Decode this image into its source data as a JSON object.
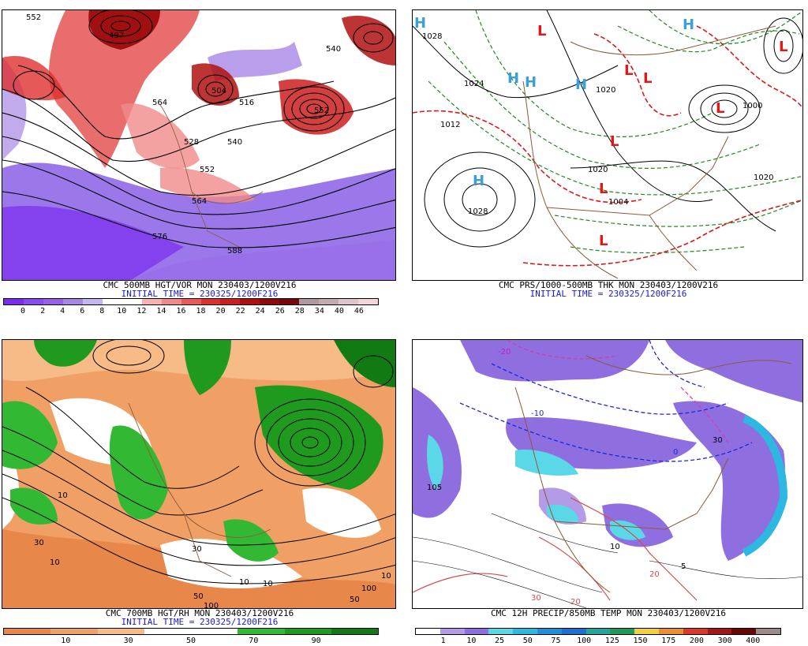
{
  "panels": [
    {
      "caption1": "CMC 500MB HGT/VOR MON 230403/1200V216",
      "caption2": "INITIAL TIME = 230325/1200F216",
      "colorbar": {
        "colors": [
          "#7b2cf0",
          "#8a4bf0",
          "#9a5fe8",
          "#a887e6",
          "#c5b5f2",
          "#ffffff",
          "#ffffff",
          "#f7b2b2",
          "#f08a8a",
          "#e85a5a",
          "#df3030",
          "#cc1f1f",
          "#b01010",
          "#8f0a0a",
          "#780606",
          "#b09aa0",
          "#c6aab0",
          "#e0c4cc",
          "#f6d4dc"
        ],
        "ticks": [
          "0",
          "2",
          "4",
          "6",
          "8",
          "10",
          "12",
          "14",
          "16",
          "18",
          "20",
          "22",
          "24",
          "26",
          "28",
          "34",
          "40",
          "46"
        ]
      },
      "contour_labels": [
        "552",
        "564",
        "497",
        "540",
        "516",
        "528",
        "540",
        "552",
        "564",
        "576",
        "588",
        "552",
        "504"
      ]
    },
    {
      "caption1": "CMC PRS/1000-500MB THK MON 230403/1200V216",
      "caption2": "INITIAL TIME = 230325/1200F216",
      "contour_labels": [
        "1028",
        "1012",
        "1024",
        "1020",
        "1028",
        "1020",
        "1004",
        "1000",
        "1020"
      ],
      "highs": [
        "H",
        "H",
        "H",
        "H",
        "H",
        "H"
      ],
      "lows": [
        "L",
        "L",
        "L",
        "L",
        "L",
        "L",
        "L",
        "L"
      ]
    },
    {
      "caption1": "CMC 700MB HGT/RH MON 230403/1200V216",
      "caption2": "INITIAL TIME = 230325/1200F216",
      "colorbar": {
        "colors": [
          "#e8874a",
          "#f0a064",
          "#f6bb86",
          "#ffffff",
          "#ffffff",
          "#33b833",
          "#1f9a1f",
          "#127a12"
        ],
        "ticks": [
          "10",
          "30",
          "50",
          "70",
          "90"
        ]
      },
      "contour_labels": [
        "10",
        "30",
        "10",
        "50",
        "100",
        "10",
        "30",
        "10",
        "50",
        "100",
        "10"
      ]
    },
    {
      "caption1": "CMC 12H PRECIP/850MB TEMP MON 230403/1200V216",
      "caption2": "",
      "colorbar": {
        "colors": [
          "#ffffff",
          "#b39be8",
          "#8f6fe0",
          "#5ad8e8",
          "#2cb8e0",
          "#1f8fd8",
          "#1f6fd0",
          "#25a4a0",
          "#1f9a5a",
          "#f0d040",
          "#e89030",
          "#d83a2a",
          "#a01818",
          "#6a0606",
          "#9a8a8a"
        ],
        "ticks": [
          "1",
          "10",
          "25",
          "50",
          "75",
          "100",
          "125",
          "150",
          "175",
          "200",
          "300",
          "400"
        ]
      },
      "contour_labels": [
        "-20",
        "-10",
        "0",
        "10",
        "20",
        "30",
        "105",
        "5",
        "20",
        "30"
      ]
    }
  ]
}
